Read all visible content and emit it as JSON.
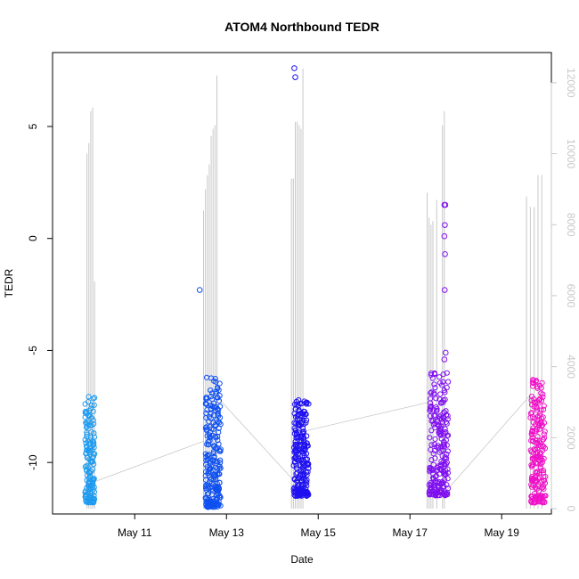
{
  "chart_data": {
    "type": "scatter",
    "title": "ATOM4 Northbound TEDR",
    "xlabel": "Date",
    "ylabel": "TEDR",
    "y2label": "",
    "xlim": [
      "2025-05-09T05:00",
      "2025-05-20T02:00"
    ],
    "ylim": [
      -12.3,
      8.3
    ],
    "y2lim": [
      -150,
      12850
    ],
    "x_ticks": [
      {
        "value": "2025-05-11",
        "label": "May 11"
      },
      {
        "value": "2025-05-13",
        "label": "May 13"
      },
      {
        "value": "2025-05-15",
        "label": "May 15"
      },
      {
        "value": "2025-05-17",
        "label": "May 17"
      },
      {
        "value": "2025-05-19",
        "label": "May 19"
      }
    ],
    "y_ticks": [
      -10,
      -5,
      0,
      5
    ],
    "y2_ticks": [
      0,
      2000,
      4000,
      6000,
      8000,
      10000,
      12000
    ],
    "grid": false,
    "legend": "none",
    "colors": {
      "points_by_time": [
        "#1e9bf0",
        "#0f50f0",
        "#1e10f0",
        "#8010f0",
        "#f010c8"
      ],
      "altitude_line": "#c8c8c8",
      "axis": "#000000",
      "right_axis": "#c8c8c8"
    },
    "tedr_clusters": [
      {
        "start": "2025-05-09T22:00",
        "end": "2025-05-10T03:00",
        "y_min": -11.8,
        "y_max": -7.0,
        "n": 150
      },
      {
        "start": "2025-05-12T13:00",
        "end": "2025-05-12T21:00",
        "y_min": -12.0,
        "y_max": -6.2,
        "n": 230
      },
      {
        "start": "2025-05-14T11:00",
        "end": "2025-05-14T19:00",
        "y_min": -11.5,
        "y_max": -7.2,
        "n": 230
      },
      {
        "start": "2025-05-17T10:00",
        "end": "2025-05-17T20:00",
        "y_min": -11.5,
        "y_max": -6.0,
        "n": 220
      },
      {
        "start": "2025-05-19T15:00",
        "end": "2025-05-19T23:00",
        "y_min": -11.8,
        "y_max": -6.3,
        "n": 200
      }
    ],
    "tedr_outliers": [
      {
        "x": "2025-05-12T10:00",
        "y": -2.3
      },
      {
        "x": "2025-05-14T11:30",
        "y": 7.6
      },
      {
        "x": "2025-05-14T12:00",
        "y": 7.2
      },
      {
        "x": "2025-05-17T18:00",
        "y": 1.5
      },
      {
        "x": "2025-05-17T18:30",
        "y": 1.5
      },
      {
        "x": "2025-05-17T18:15",
        "y": 0.6
      },
      {
        "x": "2025-05-17T18:00",
        "y": 0.1
      },
      {
        "x": "2025-05-17T18:20",
        "y": -0.7
      },
      {
        "x": "2025-05-17T18:10",
        "y": -2.3
      },
      {
        "x": "2025-05-17T18:40",
        "y": -5.1
      },
      {
        "x": "2025-05-17T18:00",
        "y": -5.4
      }
    ],
    "altitude_spikes": [
      {
        "x": "2025-05-09T23:00",
        "y": 10000
      },
      {
        "x": "2025-05-10T00:00",
        "y": 10300
      },
      {
        "x": "2025-05-10T01:00",
        "y": 11200
      },
      {
        "x": "2025-05-10T02:00",
        "y": 11300
      },
      {
        "x": "2025-05-10T03:00",
        "y": 6400
      },
      {
        "x": "2025-05-12T12:00",
        "y": 8400
      },
      {
        "x": "2025-05-12T13:00",
        "y": 9000
      },
      {
        "x": "2025-05-12T14:00",
        "y": 9400
      },
      {
        "x": "2025-05-12T15:00",
        "y": 9700
      },
      {
        "x": "2025-05-12T16:00",
        "y": 10500
      },
      {
        "x": "2025-05-12T17:00",
        "y": 10700
      },
      {
        "x": "2025-05-12T18:00",
        "y": 10800
      },
      {
        "x": "2025-05-12T19:00",
        "y": 12200
      },
      {
        "x": "2025-05-14T10:00",
        "y": 9300
      },
      {
        "x": "2025-05-14T11:00",
        "y": 9300
      },
      {
        "x": "2025-05-14T12:00",
        "y": 10900
      },
      {
        "x": "2025-05-14T13:00",
        "y": 10900
      },
      {
        "x": "2025-05-14T14:00",
        "y": 10800
      },
      {
        "x": "2025-05-14T15:00",
        "y": 10700
      },
      {
        "x": "2025-05-14T16:00",
        "y": 12400
      },
      {
        "x": "2025-05-17T09:00",
        "y": 8900
      },
      {
        "x": "2025-05-17T10:00",
        "y": 8200
      },
      {
        "x": "2025-05-17T11:00",
        "y": 8000
      },
      {
        "x": "2025-05-17T12:00",
        "y": 8100
      },
      {
        "x": "2025-05-17T14:00",
        "y": 8700
      },
      {
        "x": "2025-05-17T17:00",
        "y": 10800
      },
      {
        "x": "2025-05-17T18:00",
        "y": 11200
      },
      {
        "x": "2025-05-19T13:00",
        "y": 8800
      },
      {
        "x": "2025-05-19T15:00",
        "y": 8500
      },
      {
        "x": "2025-05-19T17:00",
        "y": 8500
      },
      {
        "x": "2025-05-19T19:00",
        "y": 9400
      },
      {
        "x": "2025-05-19T21:00",
        "y": 9400
      }
    ],
    "altitude_connectors": [
      {
        "from": {
          "x": "2025-05-10T00:00",
          "y": 700
        },
        "to": {
          "x": "2025-05-12T12:00",
          "y": 1900
        }
      },
      {
        "from": {
          "x": "2025-05-12T20:00",
          "y": 3100
        },
        "to": {
          "x": "2025-05-14T11:00",
          "y": 800
        }
      },
      {
        "from": {
          "x": "2025-05-14T18:00",
          "y": 2200
        },
        "to": {
          "x": "2025-05-17T10:00",
          "y": 3000
        }
      },
      {
        "from": {
          "x": "2025-05-17T19:00",
          "y": 500
        },
        "to": {
          "x": "2025-05-19T15:00",
          "y": 3200
        }
      }
    ]
  }
}
